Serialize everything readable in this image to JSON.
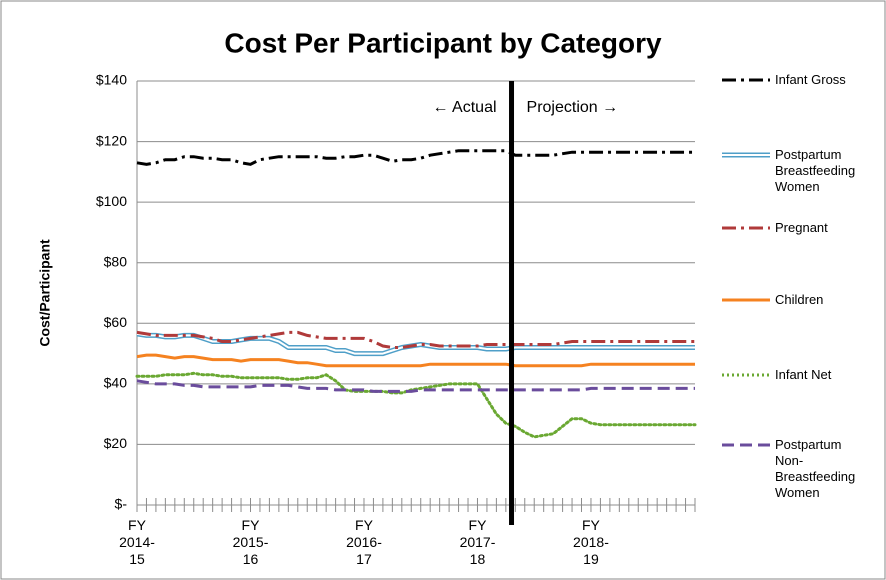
{
  "chart_data": {
    "type": "line",
    "title": "Cost Per Participant by Category",
    "y_label": "Cost/Participant",
    "annotations": [
      "← Actual",
      "Projection →"
    ],
    "divider": 39.6,
    "categories": [
      "FY 2014-15",
      null,
      null,
      null,
      null,
      null,
      null,
      null,
      null,
      null,
      null,
      null,
      "FY 2015-16",
      null,
      null,
      null,
      null,
      null,
      null,
      null,
      null,
      null,
      null,
      null,
      "FY 2016-17",
      null,
      null,
      null,
      null,
      null,
      null,
      null,
      null,
      null,
      null,
      null,
      "FY 2017-18",
      null,
      null,
      null,
      null,
      null,
      null,
      null,
      null,
      null,
      null,
      null,
      "FY 2018-19",
      null,
      null,
      null,
      null,
      null,
      null,
      null,
      null,
      null,
      null,
      null
    ],
    "ylim": [
      0,
      140
    ],
    "yticks": [
      {
        "value": 0,
        "label": "$-"
      },
      {
        "value": 20,
        "label": "$20"
      },
      {
        "value": 40,
        "label": "$40"
      },
      {
        "value": 60,
        "label": "$60"
      },
      {
        "value": 80,
        "label": "$80"
      },
      {
        "value": 100,
        "label": "$100"
      },
      {
        "value": 120,
        "label": "$120"
      },
      {
        "value": 140,
        "label": "$140"
      }
    ],
    "grid": true,
    "legend": "right",
    "series": [
      {
        "name": "Infant Gross",
        "color": "#000000",
        "style": "dashdot",
        "values": [
          113,
          112.5,
          113,
          114,
          114,
          115,
          115,
          114.5,
          114.5,
          114,
          114,
          113,
          112.5,
          114,
          114.5,
          115,
          115,
          115,
          115,
          115,
          114.5,
          114.5,
          115,
          115,
          115.5,
          115.5,
          114.5,
          113.5,
          114,
          114,
          114.5,
          115.5,
          116,
          116.5,
          117,
          117,
          117,
          117,
          117,
          117,
          115.5,
          115.5,
          115.5,
          115.5,
          115.5,
          116,
          116.5,
          116.5,
          116.5,
          116.5,
          116.5,
          116.5,
          116.5,
          116.5,
          116.5,
          116.5,
          116.5,
          116.5,
          116.5,
          116.5
        ]
      },
      {
        "name": "Postpartum Breastfeeding Women",
        "color": "#4f9fc8",
        "style": "double",
        "values": [
          56.5,
          56,
          56,
          55.5,
          55.5,
          56,
          56,
          55,
          54,
          54,
          54,
          54.5,
          55,
          55,
          55,
          54,
          52,
          52,
          52,
          52,
          52,
          51,
          51,
          50,
          50,
          50,
          50,
          51,
          52,
          52.5,
          53,
          52.5,
          52,
          52,
          52,
          52,
          52,
          51.5,
          51.5,
          51.5,
          52,
          52,
          52,
          52,
          52,
          52,
          52,
          52,
          52,
          52,
          52,
          52,
          52,
          52,
          52,
          52,
          52,
          52,
          52,
          52
        ]
      },
      {
        "name": "Pregnant",
        "color": "#b03a3a",
        "style": "dashdot",
        "values": [
          57,
          56.5,
          56,
          56,
          56,
          56,
          56,
          55.5,
          55,
          54,
          54,
          54.5,
          55,
          55.5,
          56,
          56.5,
          57,
          57,
          56,
          55.5,
          55,
          55,
          55,
          55,
          55,
          54,
          52.5,
          52,
          52,
          52.5,
          53,
          53,
          52.5,
          52.5,
          52.5,
          52.5,
          52.5,
          53,
          53,
          53,
          53,
          53,
          53,
          53,
          53,
          53.5,
          54,
          54,
          54,
          54,
          54,
          54,
          54,
          54,
          54,
          54,
          54,
          54,
          54,
          54
        ]
      },
      {
        "name": "Children",
        "color": "#f58220",
        "style": "solid",
        "values": [
          49,
          49.5,
          49.5,
          49,
          48.5,
          49,
          49,
          48.5,
          48,
          48,
          48,
          47.5,
          48,
          48,
          48,
          48,
          47.5,
          47,
          47,
          46.5,
          46,
          46,
          46,
          46,
          46,
          46,
          46,
          46,
          46,
          46,
          46,
          46.5,
          46.5,
          46.5,
          46.5,
          46.5,
          46.5,
          46.5,
          46.5,
          46.5,
          46,
          46,
          46,
          46,
          46,
          46,
          46,
          46,
          46.5,
          46.5,
          46.5,
          46.5,
          46.5,
          46.5,
          46.5,
          46.5,
          46.5,
          46.5,
          46.5,
          46.5
        ]
      },
      {
        "name": "Infant Net",
        "color": "#6aa832",
        "style": "dotted",
        "values": [
          42.5,
          42.5,
          42.5,
          43,
          43,
          43,
          43.5,
          43,
          43,
          42.5,
          42.5,
          42,
          42,
          42,
          42,
          42,
          41.5,
          41.5,
          42,
          42,
          43,
          41,
          38,
          37.5,
          37.5,
          37.5,
          37.5,
          37,
          37,
          38,
          38.5,
          39,
          39.5,
          40,
          40,
          40,
          40,
          35,
          30,
          27,
          26,
          24,
          22.5,
          23,
          23.5,
          26,
          28.5,
          28.5,
          27,
          26.5,
          26.5,
          26.5,
          26.5,
          26.5,
          26.5,
          26.5,
          26.5,
          26.5,
          26.5,
          26.5
        ]
      },
      {
        "name": "Postpartum Non-Breastfeeding Women",
        "color": "#6a4c9c",
        "style": "dashed",
        "values": [
          41,
          40.5,
          40,
          40,
          40,
          39.5,
          39.5,
          39,
          39,
          39,
          39,
          39,
          39,
          39.5,
          39.5,
          39.5,
          39.5,
          39,
          38.5,
          38.5,
          38.5,
          38,
          38,
          38,
          38,
          37.5,
          37.5,
          37.5,
          37.5,
          37.5,
          38,
          38,
          38,
          38,
          38,
          38,
          38,
          38,
          38,
          38,
          38,
          38,
          38,
          38,
          38,
          38,
          38,
          38,
          38.5,
          38.5,
          38.5,
          38.5,
          38.5,
          38.5,
          38.5,
          38.5,
          38.5,
          38.5,
          38.5,
          38.5
        ]
      }
    ]
  }
}
